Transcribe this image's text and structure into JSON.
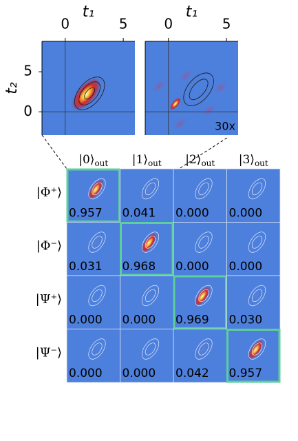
{
  "chart_data": [
    {
      "type": "image",
      "xlabel": "t₁",
      "ylabel": "t₂",
      "xlim": [
        -2,
        6
      ],
      "ylim": [
        -2.9,
        8.8
      ],
      "xticks": [
        0,
        5
      ],
      "yticks": [
        0,
        5
      ]
    },
    {
      "type": "image",
      "xlabel": "t₁",
      "xlim": [
        -2,
        6
      ],
      "ylim": [
        -2.9,
        8.8
      ],
      "xticks": [
        0,
        5
      ],
      "annotation": "30x"
    },
    {
      "type": "matrix",
      "columns": [
        "|0⟩",
        "|1⟩",
        "|2⟩",
        "|3⟩"
      ],
      "column_subscript": "out",
      "rows": [
        "|Φ⁺⟩",
        "|Φ⁻⟩",
        "|Ψ⁺⟩",
        "|Ψ⁻⟩"
      ],
      "values": [
        [
          0.957,
          0.041,
          0,
          0
        ],
        [
          0.031,
          0.968,
          0,
          0
        ],
        [
          0,
          0,
          0.969,
          0.03
        ],
        [
          0,
          0,
          0.042,
          0.957
        ]
      ],
      "value_labels": [
        [
          "0.957",
          "0.041",
          "0.000",
          "0.000"
        ],
        [
          "0.031",
          "0.968",
          "0.000",
          "0.000"
        ],
        [
          "0.000",
          "0.000",
          "0.969",
          "0.030"
        ],
        [
          "0.000",
          "0.000",
          "0.042",
          "0.957"
        ]
      ],
      "cell_color": "#4d7fdc",
      "highlight_color": "#5ccf9a"
    }
  ]
}
